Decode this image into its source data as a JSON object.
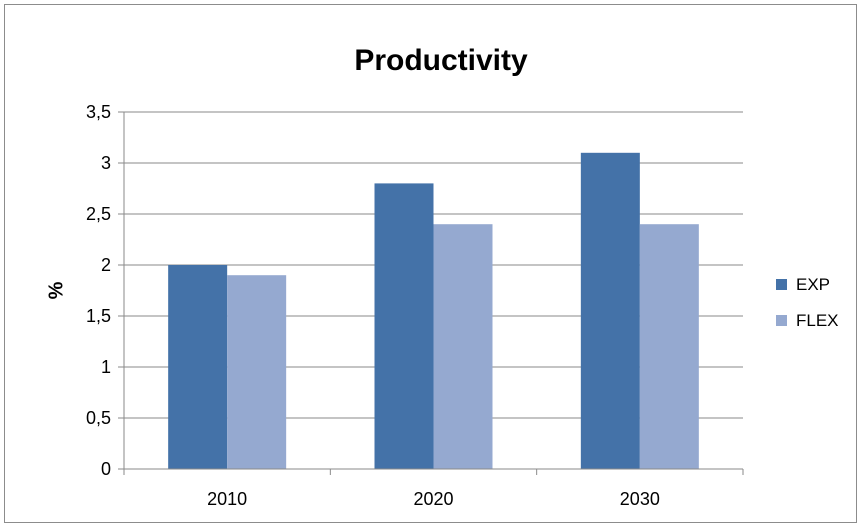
{
  "chart_data": {
    "type": "bar",
    "title": "Productivity",
    "xlabel": "",
    "ylabel": "%",
    "categories": [
      "2010",
      "2020",
      "2030"
    ],
    "series": [
      {
        "name": "EXP",
        "values": [
          2.0,
          2.8,
          3.1
        ],
        "color": "#4472a8"
      },
      {
        "name": "FLEX",
        "values": [
          1.9,
          2.4,
          2.4
        ],
        "color": "#95a9d0"
      }
    ],
    "ylim": [
      0,
      3.5
    ],
    "yticks": [
      0,
      0.5,
      1,
      1.5,
      2,
      2.5,
      3,
      3.5
    ],
    "ytick_labels": [
      "0",
      "0,5",
      "1",
      "1,5",
      "2",
      "2,5",
      "3",
      "3,5"
    ],
    "grid": true,
    "legend_position": "right"
  }
}
